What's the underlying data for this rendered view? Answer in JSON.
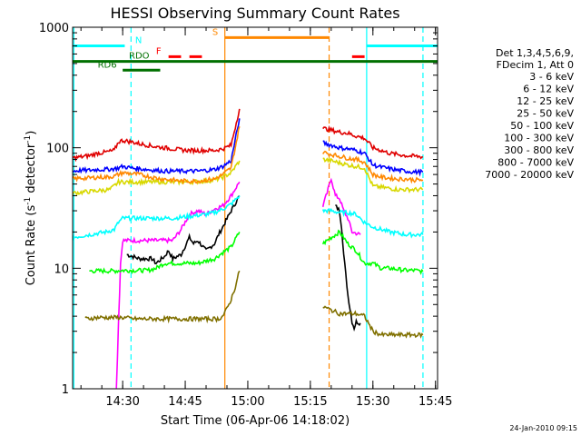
{
  "chart_data": {
    "type": "line",
    "title": "HESSI Observing Summary Count Rates",
    "xlabel": "Start Time (06-Apr-06 14:18:02)",
    "ylabel": "Count Rate (s",
    "ylabel_sup1": "-1",
    "ylabel_mid": " detector",
    "ylabel_sup2": "-1",
    "ylabel_end": ")",
    "y_scale": "log",
    "ylim": [
      1,
      1000
    ],
    "xlim_minutes": [
      0,
      87.5
    ],
    "y_ticks": [
      1,
      10,
      100,
      1000
    ],
    "y_tick_labels": [
      "1",
      "10",
      "100",
      "1000"
    ],
    "x_ticks_minutes": [
      12,
      27,
      42,
      57,
      72,
      87
    ],
    "x_tick_labels": [
      "14:30",
      "14:45",
      "15:00",
      "15:15",
      "15:30",
      "15:45"
    ],
    "footer_date": "24-Jan-2010 09:15",
    "legend": {
      "header_lines": [
        "Det 1,3,4,5,6,9,",
        "FDecim 1, Att 0"
      ],
      "placement": "right",
      "entries": [
        {
          "label": "3 - 6 keV",
          "color": "#000000"
        },
        {
          "label": "6 - 12 keV",
          "color": "#ff00ff"
        },
        {
          "label": "12 - 25 keV",
          "color": "#00ff00"
        },
        {
          "label": "25 - 50 keV",
          "color": "#00ffff"
        },
        {
          "label": "50 - 100 keV",
          "color": "#d8d800"
        },
        {
          "label": "100 - 300 keV",
          "color": "#e00000"
        },
        {
          "label": "300 - 800 keV",
          "color": "#0000ff"
        },
        {
          "label": "800 - 7000 keV",
          "color": "#ff8800"
        },
        {
          "label": "7000 - 20000 keV",
          "color": "#807000"
        }
      ]
    },
    "series": [
      {
        "name": "3 - 6 keV",
        "color": "#000000",
        "segments": [
          {
            "x": [
              13,
              16,
              19,
              20,
              22,
              23,
              24,
              26,
              28,
              29,
              30,
              32,
              34,
              35,
              36,
              38,
              40
            ],
            "y": [
              13,
              12,
              12,
              11,
              12.5,
              14,
              12,
              13,
              18,
              16,
              17,
              14,
              16,
              19,
              22,
              30,
              40
            ]
          },
          {
            "x": [
              63,
              64,
              64.5,
              65,
              66,
              67,
              67.5,
              68,
              69
            ],
            "y": [
              33,
              30,
              22,
              13,
              6,
              3.6,
              3.2,
              3.6,
              3.5
            ]
          }
        ]
      },
      {
        "name": "6 - 12 keV",
        "color": "#ff00ff",
        "segments": [
          {
            "x": [
              10.5,
              11,
              11.5,
              12,
              14,
              16,
              18,
              20,
              22,
              24,
              26,
              28,
              30,
              32,
              34,
              36,
              38,
              40
            ],
            "y": [
              1,
              3.5,
              11,
              17,
              17,
              17,
              17,
              17,
              17,
              17,
              21,
              28,
              30,
              28,
              31,
              33,
              40,
              52
            ]
          },
          {
            "x": [
              60,
              61,
              62,
              63,
              64,
              65,
              66,
              67,
              69
            ],
            "y": [
              33,
              42,
              56,
              40,
              38,
              30,
              26,
              20,
              19
            ]
          }
        ]
      },
      {
        "name": "12 - 25 keV",
        "color": "#00ff00",
        "segments": [
          {
            "x": [
              4,
              6,
              8,
              10,
              12,
              14,
              16,
              18,
              20,
              22,
              24,
              26,
              28,
              30,
              32,
              34,
              36,
              38,
              40
            ],
            "y": [
              9.5,
              9.5,
              9.5,
              9.5,
              9.6,
              9.6,
              9.6,
              9.6,
              10,
              11,
              11,
              11,
              11,
              11,
              11.5,
              12,
              13.5,
              15,
              20
            ]
          },
          {
            "x": [
              60,
              62,
              64,
              66,
              68,
              70,
              72,
              74,
              76,
              78,
              80,
              82,
              84
            ],
            "y": [
              16,
              18,
              20,
              16,
              14,
              11,
              11,
              10,
              10,
              9.8,
              9.6,
              9.6,
              9.4
            ]
          }
        ]
      },
      {
        "name": "25 - 50 keV",
        "color": "#00ffff",
        "segments": [
          {
            "x": [
              0,
              2,
              4,
              6,
              8,
              10,
              11,
              12,
              14,
              16,
              18,
              20,
              22,
              24,
              26,
              28,
              30,
              32,
              34,
              36,
              38,
              40
            ],
            "y": [
              18,
              18.5,
              19,
              19.5,
              20,
              21,
              24,
              26,
              26,
              26,
              26,
              26,
              26,
              26,
              26.5,
              27,
              27.5,
              28,
              29,
              31,
              34,
              40
            ]
          },
          {
            "x": [
              60,
              62,
              64,
              66,
              68,
              70,
              72,
              74,
              76,
              78,
              80,
              82,
              84
            ],
            "y": [
              30,
              30,
              29,
              29,
              28,
              24,
              22,
              21,
              20,
              19.5,
              19,
              19,
              19
            ]
          }
        ]
      },
      {
        "name": "50 - 100 keV",
        "color": "#d8d800",
        "segments": [
          {
            "x": [
              0,
              3,
              6,
              9,
              10.5,
              11,
              12,
              14,
              16,
              18,
              20,
              22,
              24,
              26,
              28,
              30,
              32,
              34,
              36,
              38,
              40
            ],
            "y": [
              42,
              43,
              44,
              45,
              50,
              52,
              52,
              52,
              52,
              52,
              52,
              52,
              52,
              52,
              52,
              52.5,
              53,
              54,
              57,
              62,
              78
            ]
          },
          {
            "x": [
              60,
              62,
              64,
              66,
              68,
              70,
              72,
              74,
              76,
              78,
              80,
              82,
              84
            ],
            "y": [
              80,
              78,
              75,
              72,
              70,
              68,
              48,
              47,
              46,
              45,
              45,
              45,
              45
            ]
          }
        ]
      },
      {
        "name": "100 - 300 keV",
        "color": "#e00000",
        "segments": [
          {
            "x": [
              0,
              2,
              4,
              6,
              8,
              10,
              11,
              12,
              14,
              16,
              18,
              20,
              22,
              24,
              26,
              28,
              30,
              32,
              34,
              36,
              38,
              40
            ],
            "y": [
              82,
              84,
              86,
              90,
              92,
              95,
              112,
              115,
              112,
              108,
              105,
              102,
              100,
              98,
              96,
              95,
              95,
              95,
              95,
              98,
              105,
              210
            ]
          },
          {
            "x": [
              60,
              62,
              64,
              66,
              68,
              70,
              72,
              74,
              76,
              78,
              80,
              82,
              84
            ],
            "y": [
              145,
              140,
              135,
              132,
              125,
              120,
              100,
              95,
              90,
              88,
              86,
              85,
              84
            ]
          }
        ]
      },
      {
        "name": "300 - 800 keV",
        "color": "#0000ff",
        "segments": [
          {
            "x": [
              0,
              2,
              4,
              6,
              8,
              10,
              11,
              12,
              14,
              16,
              18,
              20,
              22,
              24,
              26,
              28,
              30,
              32,
              34,
              36,
              38,
              40
            ],
            "y": [
              64,
              65,
              65,
              66,
              66,
              67,
              68,
              70,
              68,
              67,
              66,
              65,
              64,
              64,
              64,
              64,
              64,
              65,
              66,
              70,
              78,
              175
            ]
          },
          {
            "x": [
              60,
              62,
              64,
              66,
              68,
              70,
              72,
              74,
              76,
              78,
              80,
              82,
              84
            ],
            "y": [
              110,
              105,
              100,
              98,
              95,
              90,
              72,
              69,
              67,
              65,
              64,
              63,
              63
            ]
          }
        ]
      },
      {
        "name": "800 - 7000 keV",
        "color": "#ff8800",
        "segments": [
          {
            "x": [
              0,
              2,
              4,
              6,
              8,
              10,
              11,
              12,
              14,
              16,
              18,
              20,
              22,
              24,
              26,
              28,
              30,
              32,
              34,
              36,
              38,
              40
            ],
            "y": [
              55,
              56,
              56,
              57,
              57,
              58,
              60,
              62,
              61,
              60,
              58,
              56,
              55,
              54,
              53,
              53,
              53,
              54,
              55,
              60,
              68,
              150
            ]
          },
          {
            "x": [
              60,
              62,
              64,
              66,
              68,
              70,
              72,
              74,
              76,
              78,
              80,
              82,
              84
            ],
            "y": [
              92,
              88,
              85,
              82,
              80,
              76,
              60,
              57,
              56,
              55,
              55,
              54,
              54
            ]
          }
        ]
      },
      {
        "name": "7000 - 20000 keV",
        "color": "#807000",
        "segments": [
          {
            "x": [
              3,
              6,
              9,
              12,
              15,
              18,
              21,
              24,
              27,
              30,
              33,
              35,
              36,
              37,
              38,
              39,
              40
            ],
            "y": [
              3.8,
              3.9,
              3.9,
              3.9,
              3.8,
              3.8,
              3.8,
              3.8,
              3.8,
              3.8,
              3.8,
              3.8,
              4.0,
              4.6,
              5.5,
              7.0,
              9.5
            ]
          },
          {
            "x": [
              60,
              62,
              64,
              66,
              68,
              70,
              72,
              74,
              76,
              78,
              80,
              82,
              84
            ],
            "y": [
              4.8,
              4.5,
              4.2,
              4.2,
              4.2,
              4.0,
              3.0,
              2.8,
              2.8,
              2.8,
              2.8,
              2.8,
              2.8
            ]
          }
        ]
      }
    ],
    "annotations": [
      {
        "label": "N",
        "color": "#00ffff",
        "y": 700,
        "bars": [
          [
            0,
            12.5
          ],
          [
            70.5,
            87.5
          ]
        ],
        "dash": false,
        "label_x": 15
      },
      {
        "label": "F",
        "color": "#ff0000",
        "y": 570,
        "bars": [
          [
            23,
            26
          ],
          [
            28,
            31
          ],
          [
            67,
            70
          ]
        ],
        "dash": false,
        "label_x": 20
      },
      {
        "label": "S",
        "color": "#ff8800",
        "y": 820,
        "bars": [
          [
            36.5,
            61.5
          ]
        ],
        "dash": false,
        "label_x": 33.5
      },
      {
        "label": "RDO",
        "color": "#007000",
        "y": 520,
        "bars": [
          [
            0,
            87.5
          ]
        ],
        "dash": false,
        "label_x": 13.5
      },
      {
        "label": "RD6",
        "color": "#007000",
        "y": 440,
        "bars": [
          [
            12,
            21
          ]
        ],
        "dash": false,
        "label_x": 6
      }
    ],
    "vertical_markers": [
      {
        "x": 0.3,
        "color": "#00ffff",
        "dashed": false
      },
      {
        "x": 14,
        "color": "#00ffff",
        "dashed": true
      },
      {
        "x": 36.5,
        "color": "#ff8800",
        "dashed": false
      },
      {
        "x": 61.5,
        "color": "#ff8800",
        "dashed": true
      },
      {
        "x": 70.5,
        "color": "#00ffff",
        "dashed": false
      },
      {
        "x": 84,
        "color": "#00ffff",
        "dashed": true
      }
    ]
  }
}
